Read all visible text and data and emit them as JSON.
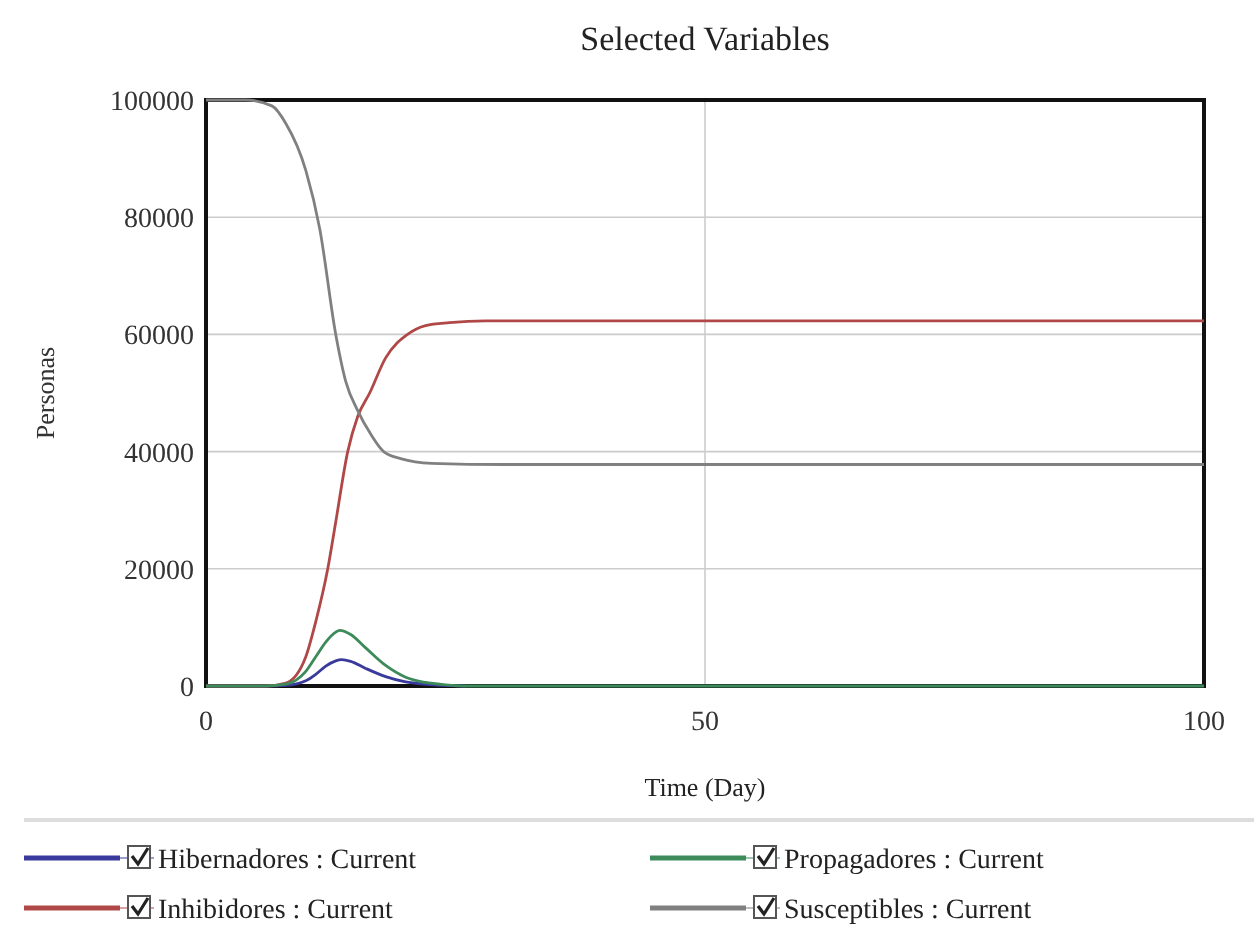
{
  "chart_data": {
    "type": "line",
    "title": "Selected Variables",
    "xlabel": "Time (Day)",
    "ylabel": "Personas",
    "xlim": [
      0,
      100
    ],
    "ylim": [
      0,
      100000
    ],
    "xticks": [
      0,
      50,
      100
    ],
    "yticks": [
      0,
      20000,
      40000,
      60000,
      80000,
      100000
    ],
    "grid": true,
    "legend": "bottom",
    "marker": "none",
    "line_style": "solid",
    "series": [
      {
        "name": "Hibernadores : Current",
        "color": "#3a3a9c",
        "x": [
          0,
          6,
          8,
          10,
          11,
          12,
          13,
          13.6,
          14.5,
          16,
          18,
          20,
          22,
          24,
          26
        ],
        "values": [
          0,
          0,
          100,
          900,
          2000,
          3400,
          4300,
          4500,
          4200,
          3000,
          1600,
          700,
          300,
          100,
          0
        ]
      },
      {
        "name": "Inhibidores : Current",
        "color": "#b04848",
        "x": [
          0,
          6,
          8,
          10,
          11,
          12.2,
          13,
          14.2,
          15.2,
          16.4,
          18,
          20.2,
          22,
          24.4,
          28,
          35,
          100
        ],
        "values": [
          0,
          0,
          500,
          5000,
          11000,
          20000,
          28000,
          40000,
          46000,
          50000,
          56000,
          60000,
          61500,
          62000,
          62300,
          62300,
          62300
        ]
      },
      {
        "name": "Propagadores : Current",
        "color": "#3d8a5a",
        "x": [
          0,
          6,
          8,
          10,
          11,
          12,
          13,
          13.4,
          14.5,
          16,
          18,
          20,
          22,
          24,
          26,
          30,
          100
        ],
        "values": [
          0,
          0,
          300,
          2500,
          5000,
          7500,
          9200,
          9500,
          8800,
          6500,
          3500,
          1500,
          600,
          200,
          0,
          0,
          0
        ]
      },
      {
        "name": "Susceptibles : Current",
        "color": "#808080",
        "x": [
          0,
          4,
          6.6,
          8,
          10,
          11.4,
          13,
          14,
          15.2,
          16.5,
          17.8,
          19.5,
          22.6,
          30,
          100
        ],
        "values": [
          100000,
          100000,
          99000,
          96000,
          88000,
          78000,
          60000,
          52000,
          47000,
          43000,
          40000,
          38800,
          38000,
          37800,
          37800
        ]
      }
    ]
  }
}
